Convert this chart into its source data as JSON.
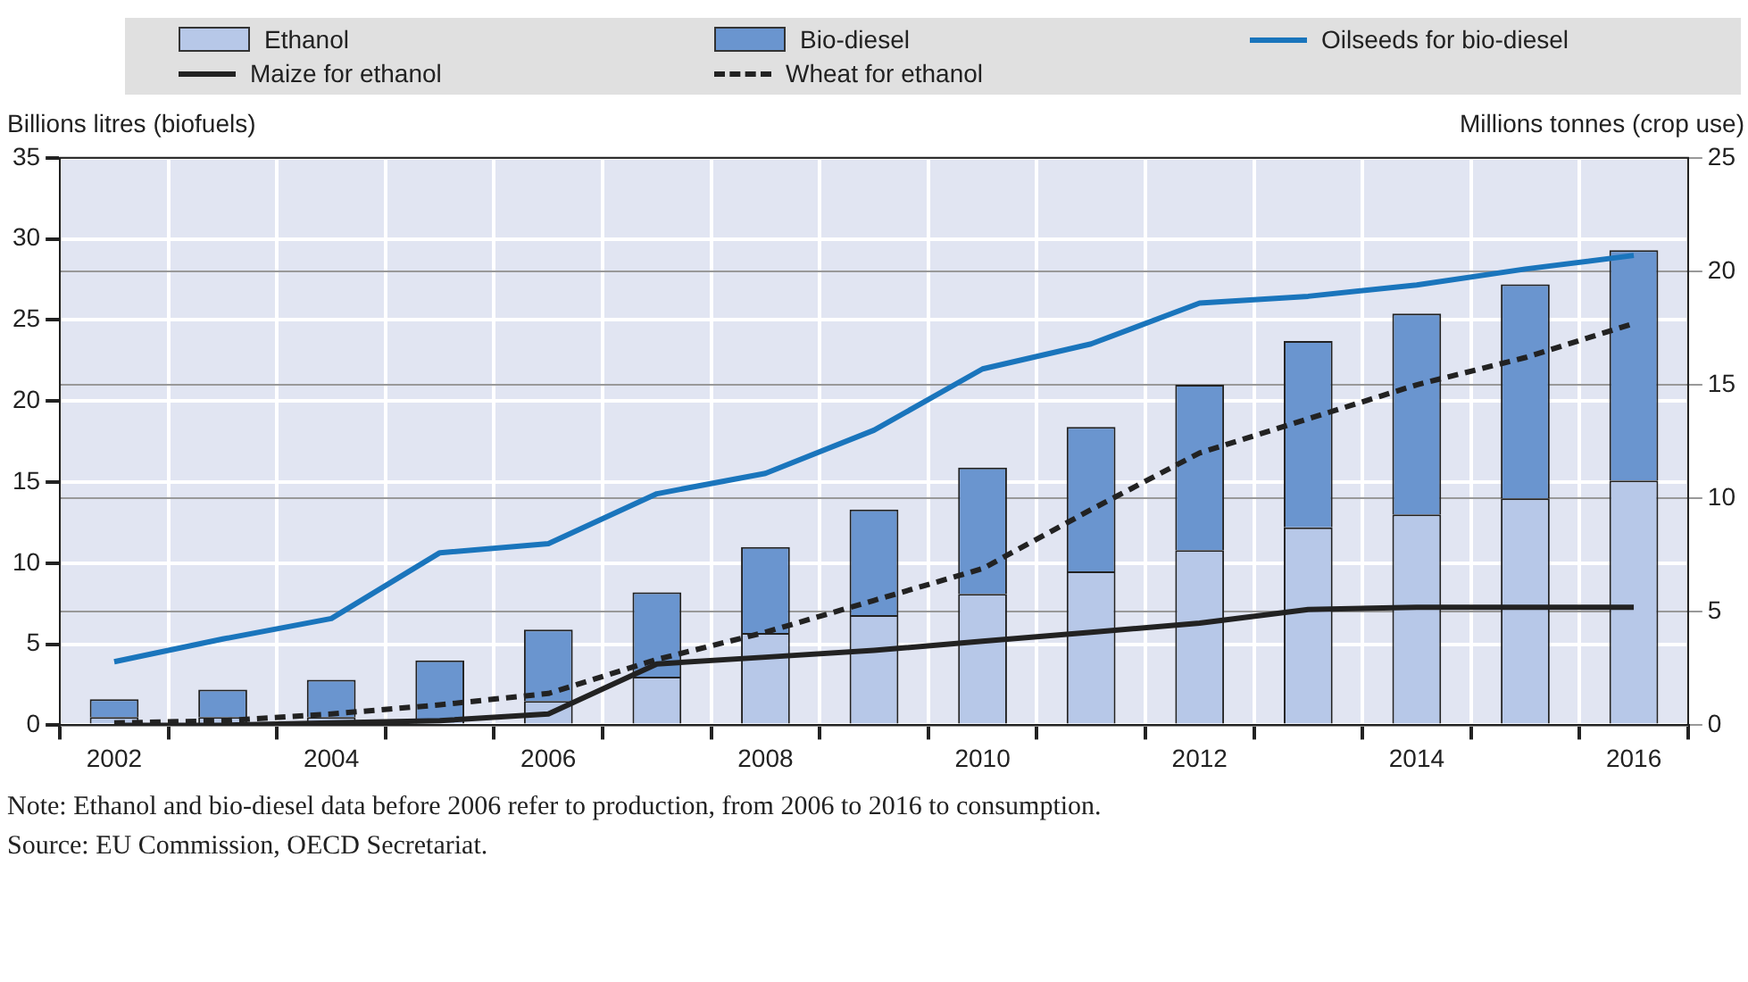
{
  "chart_data": {
    "type": "bar",
    "stacked": true,
    "legend": "top",
    "grid": true,
    "ylabel": "Billions litres (biofuels)",
    "y2label": "Millions tonnes (crop use)",
    "categories": [
      "2002",
      null,
      "2004",
      null,
      "2006",
      null,
      "2008",
      null,
      "2010",
      null,
      "2012",
      null,
      "2014",
      null,
      "2016"
    ],
    "ylim": [
      0,
      35
    ],
    "yticks": [
      0,
      5,
      10,
      15,
      20,
      25,
      30,
      35
    ],
    "y2lim": [
      0,
      25
    ],
    "y2ticks": [
      0,
      5,
      10,
      15,
      20,
      25
    ],
    "series": [
      {
        "name": "Ethanol",
        "color": "#b7c8e8",
        "values": [
          0.5,
          0.5,
          0.5,
          0.4,
          1.5,
          3.0,
          5.7,
          6.8,
          8.1,
          9.5,
          10.8,
          12.2,
          13.0,
          14.0,
          15.1
        ]
      },
      {
        "name": "Bio-diesel",
        "color": "#6a95cf",
        "values": [
          1.1,
          1.7,
          2.3,
          3.6,
          4.4,
          5.2,
          5.3,
          6.5,
          7.8,
          8.9,
          10.2,
          11.5,
          12.4,
          13.2,
          14.2
        ]
      },
      {
        "name": "Oilseeds for bio-diesel",
        "type": "line",
        "axis": "y2",
        "color": "#1a75bc",
        "line_style": "solid",
        "values": [
          2.8,
          3.8,
          4.7,
          7.6,
          8.0,
          10.2,
          11.1,
          13.0,
          15.7,
          16.8,
          18.6,
          18.9,
          19.4,
          20.1,
          20.7
        ]
      },
      {
        "name": "Maize for ethanol",
        "type": "line",
        "axis": "y2",
        "color": "#222222",
        "line_style": "solid",
        "values": [
          0,
          0,
          0.1,
          0.2,
          0.5,
          2.7,
          3.0,
          3.3,
          3.7,
          4.1,
          4.5,
          5.1,
          5.2,
          5.2,
          5.2
        ]
      },
      {
        "name": "Wheat for ethanol",
        "type": "line",
        "axis": "y2",
        "color": "#222222",
        "line_style": "dashed",
        "values": [
          0.1,
          0.2,
          0.5,
          0.9,
          1.4,
          2.9,
          4.1,
          5.5,
          6.9,
          9.5,
          12.0,
          13.5,
          15.0,
          16.2,
          17.7
        ]
      }
    ],
    "annotations": [
      "Note: Ethanol and bio-diesel data before 2006 refer to production, from 2006 to 2016 to consumption.",
      "Source: EU Commission, OECD Secretariat."
    ]
  }
}
